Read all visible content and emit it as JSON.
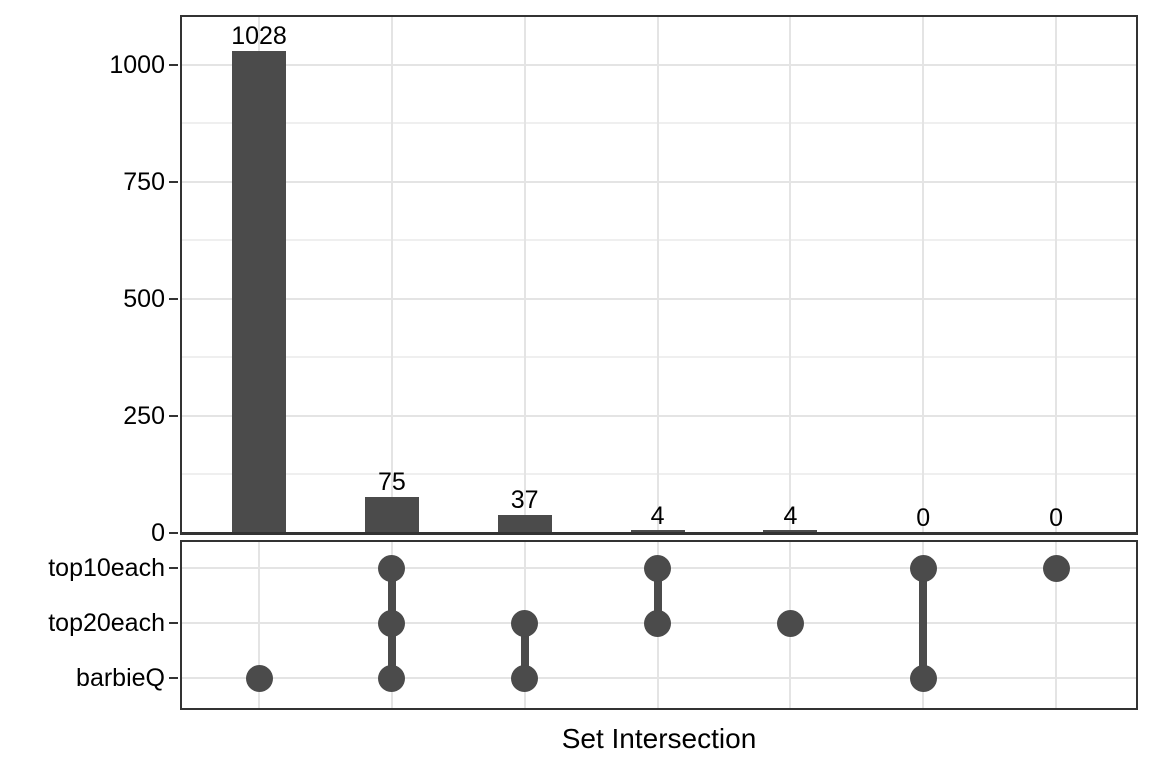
{
  "figure": {
    "x_axis_title": "Set Intersection"
  },
  "chart_data": {
    "type": "bar",
    "subtype": "upset-plot",
    "title": "",
    "xlabel": "Set Intersection",
    "ylabel": "",
    "ylim": [
      0,
      1110
    ],
    "grid": true,
    "legend": "none",
    "yticks": [
      0,
      250,
      500,
      750,
      1000
    ],
    "yticks_minor": [
      125,
      375,
      625,
      875
    ],
    "sets": [
      "top10each",
      "top20each",
      "barbieQ"
    ],
    "categories": [
      "barbieQ",
      "top10each+top20each+barbieQ",
      "top20each+barbieQ",
      "top10each+top20each",
      "top20each",
      "top10each+barbieQ",
      "top10each"
    ],
    "values": [
      1028,
      75,
      37,
      4,
      4,
      0,
      0
    ],
    "intersections": [
      {
        "value": 1028,
        "label": "1028",
        "members": [
          "barbieQ"
        ]
      },
      {
        "value": 75,
        "label": "75",
        "members": [
          "top10each",
          "top20each",
          "barbieQ"
        ]
      },
      {
        "value": 37,
        "label": "37",
        "members": [
          "top20each",
          "barbieQ"
        ]
      },
      {
        "value": 4,
        "label": "4",
        "members": [
          "top10each",
          "top20each"
        ]
      },
      {
        "value": 4,
        "label": "4",
        "members": [
          "top20each"
        ]
      },
      {
        "value": 0,
        "label": "0",
        "members": [
          "top10each",
          "barbieQ"
        ]
      },
      {
        "value": 0,
        "label": "0",
        "members": [
          "top10each"
        ]
      }
    ],
    "colors": {
      "bar": "#4b4b4b",
      "dot": "#4b4b4b",
      "connector": "#4b4b4b",
      "grid_major": "#e4e4e4",
      "grid_minor": "#efefef",
      "panel_border": "#333333",
      "tick": "#333333",
      "text": "#000000"
    }
  }
}
